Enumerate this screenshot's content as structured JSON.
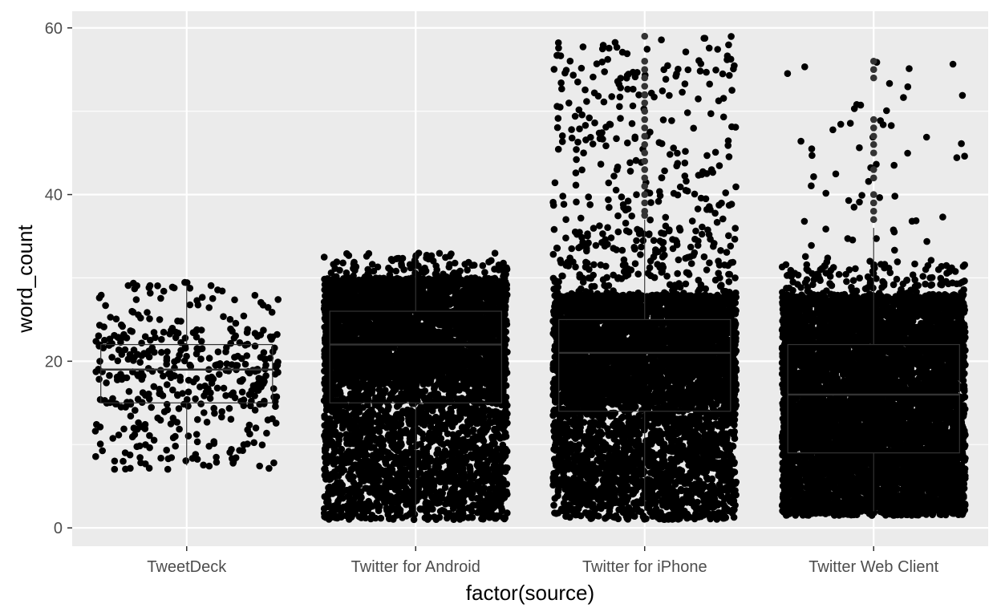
{
  "chart_data": {
    "type": "scatter",
    "subtype": "jittered points over boxplot",
    "xlabel": "factor(source)",
    "ylabel": "word_count",
    "categories": [
      "TweetDeck",
      "Twitter for Android",
      "Twitter for iPhone",
      "Twitter Web Client"
    ],
    "y_ticks": [
      0,
      20,
      40,
      60
    ],
    "ylim": [
      -2.2,
      62
    ],
    "grid": true,
    "panel_background": "#ebebeb",
    "grid_color": "#ffffff",
    "point_color": "#000000",
    "legend": "none",
    "boxplots": [
      {
        "category": "TweetDeck",
        "min": 7.5,
        "q1": 15,
        "median": 19,
        "q3": 22,
        "max": 29
      },
      {
        "category": "Twitter for Android",
        "min": 1.5,
        "q1": 15,
        "median": 22,
        "q3": 26,
        "max": 33
      },
      {
        "category": "Twitter for iPhone",
        "min": 2,
        "q1": 14,
        "median": 21,
        "q3": 25,
        "max": 37
      },
      {
        "category": "Twitter Web Client",
        "min": 2,
        "q1": 9,
        "median": 16,
        "q3": 22,
        "max": 36
      }
    ],
    "series": [
      {
        "category": "TweetDeck",
        "n_points": 420,
        "distribution": [
          {
            "from": 7,
            "to": 15,
            "weight": 0.3
          },
          {
            "from": 15,
            "to": 24,
            "weight": 0.57
          },
          {
            "from": 24,
            "to": 29.5,
            "weight": 0.13
          }
        ],
        "outliers": []
      },
      {
        "category": "Twitter for Android",
        "n_points": 5200,
        "distribution": [
          {
            "from": 1,
            "to": 18,
            "weight": 0.38
          },
          {
            "from": 18,
            "to": 30,
            "weight": 0.6
          },
          {
            "from": 30,
            "to": 33,
            "weight": 0.02
          }
        ],
        "outliers": []
      },
      {
        "category": "Twitter for iPhone",
        "n_points": 5600,
        "distribution": [
          {
            "from": 1,
            "to": 15,
            "weight": 0.3
          },
          {
            "from": 15,
            "to": 28,
            "weight": 0.62
          },
          {
            "from": 28,
            "to": 36,
            "weight": 0.04
          },
          {
            "from": 36,
            "to": 59,
            "weight": 0.04
          }
        ],
        "outliers": [
          37.5,
          38,
          39,
          40,
          41,
          42,
          43,
          44,
          45,
          46,
          47,
          48,
          49,
          50,
          51,
          52,
          53,
          54,
          55,
          56,
          59
        ]
      },
      {
        "category": "Twitter Web Client",
        "n_points": 6400,
        "distribution": [
          {
            "from": 1.5,
            "to": 28,
            "weight": 0.97
          },
          {
            "from": 28,
            "to": 32,
            "weight": 0.02
          },
          {
            "from": 32,
            "to": 56,
            "weight": 0.01
          }
        ],
        "outliers": [
          37,
          38,
          39,
          40,
          42,
          43,
          45,
          46,
          47,
          48,
          49,
          54,
          55,
          56
        ]
      }
    ]
  }
}
